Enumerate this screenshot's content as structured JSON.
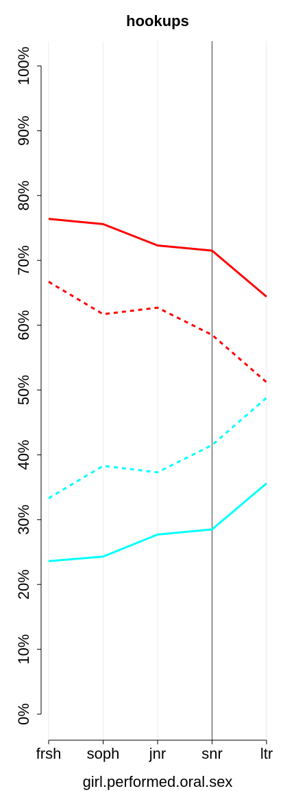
{
  "chart_data": {
    "type": "line",
    "title": "hookups",
    "xlabel": "girl.performed.oral.sex",
    "ylabel": "",
    "categories": [
      "frsh",
      "soph",
      "jnr",
      "snr",
      "ltr"
    ],
    "ylim": [
      0,
      100
    ],
    "yticks": [
      0,
      10,
      20,
      30,
      40,
      50,
      60,
      70,
      80,
      90,
      100
    ],
    "ytick_labels": [
      "0%",
      "10%",
      "20%",
      "30%",
      "40%",
      "50%",
      "60%",
      "70%",
      "80%",
      "90%",
      "100%"
    ],
    "grid": "vertical",
    "highlight_category": "snr",
    "series": [
      {
        "values": [
          76.4,
          75.6,
          72.3,
          71.5,
          64.4
        ],
        "color": "#ff0000",
        "style": "solid"
      },
      {
        "values": [
          66.7,
          61.7,
          62.7,
          58.5,
          51.2
        ],
        "color": "#ff0000",
        "style": "dashed"
      },
      {
        "values": [
          33.3,
          38.3,
          37.3,
          41.5,
          48.8
        ],
        "color": "#00ffff",
        "style": "dashed"
      },
      {
        "values": [
          23.6,
          24.3,
          27.7,
          28.5,
          35.6
        ],
        "color": "#00ffff",
        "style": "solid"
      }
    ]
  }
}
